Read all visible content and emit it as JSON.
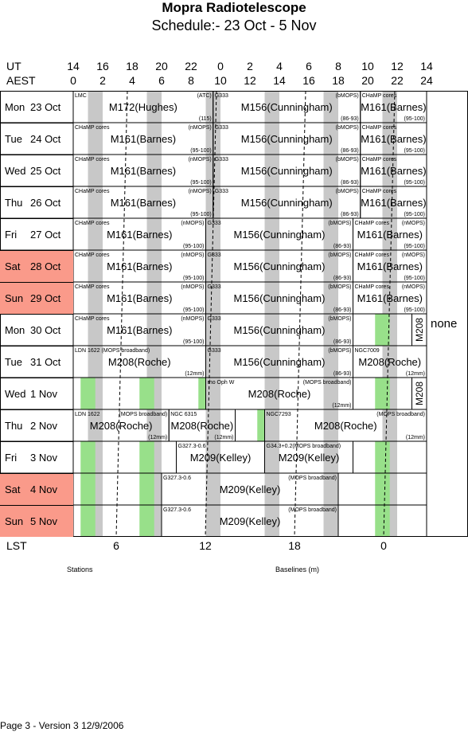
{
  "title": "Mopra Radiotelescope",
  "subtitle": "Schedule:- 23 Oct - 5  Nov",
  "axes": {
    "ut_label": "UT",
    "aest_label": "AEST",
    "lst_label": "LST",
    "ut_ticks": [
      "14",
      "16",
      "18",
      "20",
      "22",
      "0",
      "2",
      "4",
      "6",
      "8",
      "10",
      "12",
      "14"
    ],
    "aest_ticks": [
      "0",
      "2",
      "4",
      "6",
      "8",
      "10",
      "12",
      "14",
      "16",
      "18",
      "20",
      "22",
      "24"
    ],
    "lst_ticks": [
      "6",
      "12",
      "18",
      "0"
    ]
  },
  "colors": {
    "weekend": "#fa9a8a",
    "maintenance": "#98e08a",
    "night_band": "#c8c8c8"
  },
  "days": [
    {
      "dow": "Mon",
      "date": "23 Oct",
      "weekend": false,
      "blocks": [
        {
          "start": 0,
          "end": 9.5,
          "label": "M172(Hughes)",
          "tl": "LMC",
          "tr": "(ATC)",
          "br": "(115)"
        },
        {
          "start": 9.5,
          "end": 19.5,
          "label": "M156(Cunningham)",
          "tl": "G333",
          "tr": "(bMOPS)",
          "br": "(86-93)"
        },
        {
          "start": 19.5,
          "end": 24,
          "label": "M161(Barnes)",
          "tl": "CHaMP cores",
          "br": "(95-100)"
        }
      ]
    },
    {
      "dow": "Tue",
      "date": "24 Oct",
      "weekend": false,
      "blocks": [
        {
          "start": 0,
          "end": 9.5,
          "label": "M161(Barnes)",
          "tl": "CHaMP cores",
          "tr": "(nMOPS)",
          "br": "(95-100)"
        },
        {
          "start": 9.5,
          "end": 19.5,
          "label": "M156(Cunningham)",
          "tl": "G333",
          "tr": "(bMOPS)",
          "br": "(86-93)"
        },
        {
          "start": 19.5,
          "end": 24,
          "label": "M161(Barnes)",
          "tl": "CHaMP cores",
          "br": "(95-100)"
        }
      ]
    },
    {
      "dow": "Wed",
      "date": "25 Oct",
      "weekend": false,
      "blocks": [
        {
          "start": 0,
          "end": 9.5,
          "label": "M161(Barnes)",
          "tl": "CHaMP cores",
          "tr": "(nMOPS)",
          "br": "(95-100)"
        },
        {
          "start": 9.5,
          "end": 19.5,
          "label": "M156(Cunningham)",
          "tl": "G333",
          "tr": "(bMOPS)",
          "br": "(86-93)"
        },
        {
          "start": 19.5,
          "end": 24,
          "label": "M161(Barnes)",
          "tl": "CHaMP cores",
          "br": "(95-100)"
        }
      ]
    },
    {
      "dow": "Thu",
      "date": "26 Oct",
      "weekend": false,
      "blocks": [
        {
          "start": 0,
          "end": 9.5,
          "label": "M161(Barnes)",
          "tl": "CHaMP cores",
          "tr": "(nMOPS)",
          "br": "(95-100)"
        },
        {
          "start": 9.5,
          "end": 19.5,
          "label": "M156(Cunningham)",
          "tl": "G333",
          "tr": "(bMOPS)",
          "br": "(86-93)"
        },
        {
          "start": 19.5,
          "end": 24,
          "label": "M161(Barnes)",
          "tl": "CHaMP cores",
          "br": "(95-100)"
        }
      ]
    },
    {
      "dow": "Fri",
      "date": "27 Oct",
      "weekend": false,
      "blocks": [
        {
          "start": 0,
          "end": 9,
          "label": "M161(Barnes)",
          "tl": "CHaMP cores",
          "tr": "(nMOPS)",
          "br": "(95-100)"
        },
        {
          "start": 9,
          "end": 19,
          "label": "M156(Cunningham)",
          "tl": "G333",
          "tr": "(bMOPS)",
          "br": "(86-93)"
        },
        {
          "start": 19,
          "end": 24,
          "label": "M161(Barnes)",
          "tl": "CHaMP cores",
          "tr": "(nMOPS)",
          "br": "(95-100)"
        }
      ]
    },
    {
      "dow": "Sat",
      "date": "28 Oct",
      "weekend": true,
      "blocks": [
        {
          "start": 0,
          "end": 9,
          "label": "M161(Barnes)",
          "tl": "CHaMP cores",
          "tr": "(nMOPS)",
          "br": "(95-100)"
        },
        {
          "start": 9,
          "end": 19,
          "label": "M156(Cunningham)",
          "tl": "G333",
          "tr": "(bMOPS)",
          "br": "(86-93)"
        },
        {
          "start": 19,
          "end": 24,
          "label": "M161(Barnes)",
          "tl": "CHaMP cores",
          "tr": "(nMOPS)",
          "br": "(95-100)"
        }
      ]
    },
    {
      "dow": "Sun",
      "date": "29 Oct",
      "weekend": true,
      "blocks": [
        {
          "start": 0,
          "end": 9,
          "label": "M161(Barnes)",
          "tl": "CHaMP cores",
          "tr": "(nMOPS)",
          "br": "(95-100)"
        },
        {
          "start": 9,
          "end": 19,
          "label": "M156(Cunningham)",
          "tl": "G333",
          "tr": "(bMOPS)",
          "br": "(86-93)"
        },
        {
          "start": 19,
          "end": 24,
          "label": "M161(Barnes)",
          "tl": "CHaMP cores",
          "tr": "(nMOPS)",
          "br": "(95-100)"
        }
      ]
    },
    {
      "dow": "Mon",
      "date": "30 Oct",
      "weekend": false,
      "blocks": [
        {
          "start": 0,
          "end": 9,
          "label": "M161(Barnes)",
          "tl": "CHaMP cores",
          "tr": "(nMOPS)",
          "br": "(95-100)"
        },
        {
          "start": 9,
          "end": 19,
          "label": "M156(Cunningham)",
          "tl": "G333",
          "tr": "(bMOPS)",
          "br": "(86-93)"
        },
        {
          "start": 19,
          "end": 23,
          "label": "",
          "maint": true
        },
        {
          "start": 23,
          "end": 24,
          "label": "M208",
          "vertical": true
        }
      ],
      "side_note": "none"
    },
    {
      "dow": "Tue",
      "date": "31 Oct",
      "weekend": false,
      "blocks": [
        {
          "start": 0,
          "end": 9,
          "label": "M208(Roche)",
          "tl": "LDN 1622 (MOPS broadband)",
          "br": "(12mm)"
        },
        {
          "start": 9,
          "end": 19,
          "label": "M156(Cunningham)",
          "tl": "G333",
          "tr": "(bMOPS)",
          "br": "(86-93)"
        },
        {
          "start": 19,
          "end": 24,
          "label": "M208(Roche)",
          "tl": "NGC7009",
          "br": "(12mm)"
        }
      ]
    },
    {
      "dow": "Wed",
      "date": "1  Nov",
      "weekend": false,
      "blocks": [
        {
          "start": 0,
          "end": 9,
          "label": "",
          "maint": true
        },
        {
          "start": 9,
          "end": 19,
          "label": "M208(Roche)",
          "tl": "rho Oph W",
          "tr": "(MOPS broadband)",
          "br": "(12mm)"
        },
        {
          "start": 19,
          "end": 23,
          "label": "",
          "maint": true
        },
        {
          "start": 23,
          "end": 24,
          "label": "M208",
          "vertical": true
        }
      ]
    },
    {
      "dow": "Thu",
      "date": "2  Nov",
      "weekend": false,
      "blocks": [
        {
          "start": 0,
          "end": 6.5,
          "label": "M208(Roche)",
          "tl": "LDN 1622",
          "tr": "(MOPS broadband)",
          "br": "(12mm)"
        },
        {
          "start": 6.5,
          "end": 11,
          "label": "M208(Roche)",
          "tl": "NGC 6315",
          "br": "(12mm)"
        },
        {
          "start": 11,
          "end": 13,
          "label": "",
          "maint": true
        },
        {
          "start": 13,
          "end": 24,
          "label": "M208(Roche)",
          "tl": "NGC7293",
          "tr": "(MOPS broadband)",
          "br": "(12mm)"
        }
      ]
    },
    {
      "dow": "Fri",
      "date": "3  Nov",
      "weekend": false,
      "blocks": [
        {
          "start": 0,
          "end": 7,
          "label": "",
          "maint": true
        },
        {
          "start": 7,
          "end": 13,
          "label": "M209(Kelley)",
          "tl": "G327.3-0.6"
        },
        {
          "start": 13,
          "end": 19,
          "label": "M209(Kelley)",
          "tl": "G34.3+0.2(MOPS broadband)"
        },
        {
          "start": 19,
          "end": 24,
          "label": "",
          "maint": true
        }
      ]
    },
    {
      "dow": "Sat",
      "date": "4  Nov",
      "weekend": true,
      "blocks": [
        {
          "start": 0,
          "end": 6,
          "label": "",
          "maint": true
        },
        {
          "start": 6,
          "end": 18,
          "label": "M209(Kelley)",
          "tl": "G327.3-0.6",
          "tr": "(MOPS broadband)"
        },
        {
          "start": 18,
          "end": 24,
          "label": "",
          "maint": true
        }
      ]
    },
    {
      "dow": "Sun",
      "date": "5  Nov",
      "weekend": true,
      "blocks": [
        {
          "start": 0,
          "end": 6,
          "label": "",
          "maint": true
        },
        {
          "start": 6,
          "end": 18,
          "label": "M209(Kelley)",
          "tl": "G327.3-0.6",
          "tr": "(MOPS broadband)"
        },
        {
          "start": 18,
          "end": 24,
          "label": "",
          "maint": true
        }
      ]
    }
  ],
  "legend": {
    "stations": "Stations",
    "baselines": "Baselines (m)"
  },
  "footer": "Page 3 - Version 3  12/9/2006"
}
